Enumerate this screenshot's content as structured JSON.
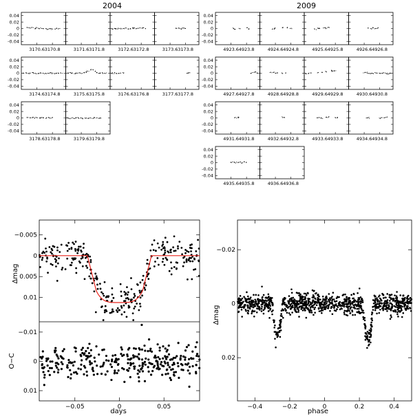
{
  "chart_data": [
    {
      "type": "scatter",
      "title": "2004",
      "panel_group": "small-multiples",
      "ylim": [
        0.05,
        -0.05
      ],
      "yticks": [
        "-0.04",
        "-0.02",
        "0",
        "0.02",
        "0.04"
      ],
      "panels": [
        {
          "xticks": [
            "3170.6",
            "3170.8"
          ],
          "points": [
            [
              0.15,
              0.002
            ],
            [
              0.2,
              0.001
            ],
            [
              0.25,
              0.003
            ],
            [
              0.3,
              -0.001
            ],
            [
              0.35,
              0.002
            ],
            [
              0.4,
              0.0
            ],
            [
              0.45,
              0.001
            ],
            [
              0.5,
              -0.001
            ],
            [
              0.55,
              0.0
            ],
            [
              0.6,
              -0.002
            ],
            [
              0.65,
              0.0
            ],
            [
              0.7,
              -0.001
            ],
            [
              0.75,
              -0.002
            ],
            [
              0.8,
              0.0
            ],
            [
              0.85,
              -0.001
            ]
          ]
        },
        {
          "xticks": [
            "3171.6",
            "3171.8"
          ],
          "points": []
        },
        {
          "xticks": [
            "3172.6",
            "3172.8"
          ],
          "points": [
            [
              0.05,
              -0.002
            ],
            [
              0.1,
              0.0
            ],
            [
              0.15,
              -0.001
            ],
            [
              0.2,
              0.001
            ],
            [
              0.25,
              -0.001
            ],
            [
              0.3,
              0.0
            ],
            [
              0.35,
              0.001
            ],
            [
              0.4,
              -0.001
            ],
            [
              0.45,
              0.0
            ],
            [
              0.5,
              0.001
            ],
            [
              0.55,
              0.002
            ],
            [
              0.6,
              0.0
            ],
            [
              0.65,
              0.001
            ],
            [
              0.7,
              0.002
            ],
            [
              0.75,
              0.001
            ],
            [
              0.8,
              0.0
            ]
          ]
        },
        {
          "xticks": [
            "3173.6",
            "3173.8"
          ],
          "points": [
            [
              0.5,
              0.0
            ],
            [
              0.55,
              0.001
            ],
            [
              0.6,
              -0.001
            ],
            [
              0.65,
              0.002
            ],
            [
              0.7,
              0.0
            ]
          ]
        },
        {
          "xticks": [
            "3174.6",
            "3174.8"
          ],
          "points": [
            [
              0.05,
              0.0
            ],
            [
              0.1,
              0.001
            ],
            [
              0.15,
              -0.001
            ],
            [
              0.2,
              0.0
            ],
            [
              0.25,
              0.001
            ],
            [
              0.3,
              0.0
            ],
            [
              0.35,
              -0.001
            ],
            [
              0.4,
              0.0
            ],
            [
              0.45,
              0.001
            ],
            [
              0.5,
              0.0
            ],
            [
              0.55,
              -0.001
            ],
            [
              0.6,
              0.0
            ],
            [
              0.65,
              0.001
            ],
            [
              0.7,
              0.0
            ],
            [
              0.75,
              -0.001
            ],
            [
              0.8,
              0.0
            ],
            [
              0.85,
              0.001
            ],
            [
              0.9,
              0.0
            ]
          ]
        },
        {
          "xticks": [
            "3175.6",
            "3175.8"
          ],
          "points": [
            [
              0.05,
              0.0
            ],
            [
              0.1,
              0.001
            ],
            [
              0.15,
              0.0
            ],
            [
              0.2,
              -0.001
            ],
            [
              0.25,
              0.0
            ],
            [
              0.3,
              0.001
            ],
            [
              0.35,
              0.0
            ],
            [
              0.4,
              0.001
            ],
            [
              0.45,
              0.003
            ],
            [
              0.5,
              0.006
            ],
            [
              0.55,
              0.011
            ],
            [
              0.6,
              0.011
            ],
            [
              0.65,
              0.006
            ],
            [
              0.7,
              0.002
            ],
            [
              0.75,
              0.0
            ],
            [
              0.8,
              0.001
            ],
            [
              0.85,
              0.0
            ],
            [
              0.9,
              0.0
            ]
          ]
        },
        {
          "xticks": [
            "3176.6",
            "3176.8"
          ],
          "points": [
            [
              0.05,
              0.0
            ],
            [
              0.1,
              0.001
            ],
            [
              0.15,
              0.0
            ],
            [
              0.2,
              -0.001
            ],
            [
              0.25,
              0.0
            ],
            [
              0.3,
              0.001
            ]
          ]
        },
        {
          "xticks": [
            "3177.6",
            "3177.8"
          ],
          "points": [
            [
              0.75,
              0.0
            ],
            [
              0.78,
              0.001
            ]
          ]
        },
        {
          "xticks": [
            "3178.6",
            "3178.8"
          ],
          "points": [
            [
              0.15,
              0.001
            ],
            [
              0.2,
              0.0
            ],
            [
              0.25,
              0.002
            ],
            [
              0.3,
              -0.001
            ],
            [
              0.35,
              0.001
            ],
            [
              0.4,
              0.0
            ],
            [
              0.45,
              0.002
            ],
            [
              0.5,
              0.001
            ],
            [
              0.55,
              0.0
            ],
            [
              0.6,
              0.001
            ],
            [
              0.65,
              -0.001
            ],
            [
              0.7,
              0.0
            ]
          ]
        },
        {
          "xticks": [
            "3179.6",
            "3179.8"
          ],
          "points": [
            [
              0.05,
              0.0
            ],
            [
              0.1,
              -0.002
            ],
            [
              0.15,
              0.0
            ],
            [
              0.2,
              -0.001
            ],
            [
              0.25,
              0.001
            ],
            [
              0.3,
              -0.001
            ],
            [
              0.35,
              0.0
            ],
            [
              0.4,
              -0.002
            ],
            [
              0.45,
              0.0
            ],
            [
              0.5,
              -0.001
            ],
            [
              0.55,
              0.0
            ],
            [
              0.6,
              -0.001
            ],
            [
              0.65,
              0.001
            ],
            [
              0.7,
              0.0
            ],
            [
              0.75,
              -0.001
            ],
            [
              0.8,
              0.0
            ]
          ]
        }
      ]
    },
    {
      "type": "scatter",
      "title": "2009",
      "panel_group": "small-multiples",
      "ylim": [
        0.05,
        -0.05
      ],
      "yticks": [
        "-0.04",
        "-0.02",
        "0",
        "0.02",
        "0.04"
      ],
      "panels": [
        {
          "xticks": [
            "4923.6",
            "4923.8"
          ],
          "points": [
            [
              0.4,
              0.0
            ],
            [
              0.45,
              -0.002
            ],
            [
              0.55,
              0.001
            ],
            [
              0.7,
              0.003
            ],
            [
              0.75,
              -0.001
            ]
          ]
        },
        {
          "xticks": [
            "4924.6",
            "4924.8"
          ],
          "points": [
            [
              0.3,
              -0.002
            ],
            [
              0.35,
              0.001
            ],
            [
              0.5,
              0.003
            ],
            [
              0.6,
              0.002
            ],
            [
              0.7,
              0.0
            ]
          ]
        },
        {
          "xticks": [
            "4925.6",
            "4925.8"
          ],
          "points": [
            [
              0.25,
              -0.002
            ],
            [
              0.3,
              0.0
            ],
            [
              0.35,
              0.001
            ],
            [
              0.45,
              0.002
            ],
            [
              0.5,
              0.001
            ],
            [
              0.55,
              0.003
            ]
          ]
        },
        {
          "xticks": [
            "4926.6",
            "4926.8"
          ],
          "points": [
            [
              0.45,
              0.001
            ],
            [
              0.5,
              -0.001
            ],
            [
              0.55,
              0.002
            ],
            [
              0.6,
              0.0
            ],
            [
              0.65,
              0.002
            ]
          ]
        },
        {
          "xticks": [
            "4927.6",
            "4927.8"
          ],
          "points": [
            [
              0.8,
              0.0
            ],
            [
              0.85,
              0.002
            ],
            [
              0.9,
              0.004
            ],
            [
              0.95,
              0.001
            ]
          ]
        },
        {
          "xticks": [
            "4928.6",
            "4928.8"
          ],
          "points": [
            [
              0.25,
              0.002
            ],
            [
              0.3,
              0.003
            ],
            [
              0.35,
              0.0
            ],
            [
              0.4,
              0.001
            ],
            [
              0.5,
              -0.001
            ],
            [
              0.6,
              0.001
            ]
          ]
        },
        {
          "xticks": [
            "4929.6",
            "4929.8"
          ],
          "points": [
            [
              0.05,
              -0.002
            ],
            [
              0.1,
              -0.001
            ],
            [
              0.15,
              0.001
            ],
            [
              0.3,
              0.002
            ],
            [
              0.4,
              0.003
            ],
            [
              0.5,
              0.005
            ],
            [
              0.6,
              0.008
            ],
            [
              0.65,
              0.006
            ],
            [
              0.7,
              0.007
            ]
          ]
        },
        {
          "xticks": [
            "4930.6",
            "4930.8"
          ],
          "points": [
            [
              0.35,
              0.002
            ],
            [
              0.4,
              0.001
            ],
            [
              0.45,
              0.0
            ],
            [
              0.5,
              -0.001
            ],
            [
              0.55,
              0.0
            ],
            [
              0.6,
              0.001
            ],
            [
              0.65,
              0.0
            ],
            [
              0.7,
              -0.001
            ],
            [
              0.75,
              0.0
            ],
            [
              0.8,
              0.001
            ],
            [
              0.85,
              0.0
            ],
            [
              0.9,
              -0.002
            ],
            [
              0.95,
              0.0
            ]
          ]
        },
        {
          "xticks": [
            "4931.6",
            "4931.8"
          ],
          "points": [
            [
              0.45,
              0.001
            ],
            [
              0.5,
              0.0
            ],
            [
              0.52,
              0.002
            ]
          ]
        },
        {
          "xticks": [
            "4932.6",
            "4932.8"
          ],
          "points": [
            [
              0.5,
              0.002
            ],
            [
              0.55,
              0.001
            ]
          ]
        },
        {
          "xticks": [
            "4933.6",
            "4933.8"
          ],
          "points": [
            [
              0.3,
              0.0
            ],
            [
              0.35,
              0.001
            ],
            [
              0.4,
              -0.001
            ],
            [
              0.5,
              0.001
            ],
            [
              0.55,
              0.002
            ],
            [
              0.7,
              0.0
            ],
            [
              0.75,
              0.001
            ]
          ]
        },
        {
          "xticks": [
            "4934.6",
            "4934.8"
          ],
          "points": [
            [
              0.4,
              0.0
            ],
            [
              0.45,
              0.001
            ],
            [
              0.7,
              -0.001
            ],
            [
              0.75,
              0.0
            ],
            [
              0.8,
              0.001
            ],
            [
              0.85,
              0.003
            ]
          ]
        },
        {
          "xticks": [
            "4935.6",
            "4935.8"
          ],
          "points": [
            [
              0.35,
              0.0
            ],
            [
              0.4,
              0.001
            ],
            [
              0.45,
              -0.001
            ],
            [
              0.5,
              0.0
            ],
            [
              0.55,
              0.001
            ],
            [
              0.6,
              0.0
            ],
            [
              0.65,
              0.002
            ],
            [
              0.7,
              0.001
            ]
          ]
        },
        {
          "xticks": [
            "4936.6",
            "4936.8"
          ],
          "points": []
        }
      ]
    },
    {
      "type": "scatter",
      "title": "",
      "xlabel": "days",
      "ylabel": "Δmag",
      "ylabel_residual": "O−C",
      "xlim": [
        -0.09,
        0.09
      ],
      "ylim": [
        0.0158,
        -0.0085
      ],
      "ylim_residual": [
        0.0135,
        -0.0135
      ],
      "xticks": [
        "−0.05",
        "0",
        "0.05"
      ],
      "yticks": [
        "−0.005",
        "0",
        "0.005",
        "0.01"
      ],
      "yticks_residual": [
        "−0.01",
        "0",
        "0.01"
      ],
      "model_color": "#e8231b",
      "model": {
        "depth": 0.0112,
        "t_ingress_start": -0.036,
        "t_ingress_end": -0.026,
        "t_egress_start": 0.026,
        "t_egress_end": 0.036
      }
    },
    {
      "type": "scatter",
      "title": "",
      "xlabel": "phase",
      "ylabel": "Δmag",
      "xlim": [
        -0.5,
        0.5
      ],
      "ylim": [
        0.036,
        -0.031
      ],
      "xticks": [
        "−0.4",
        "−0.2",
        "0",
        "0.2",
        "0.4"
      ],
      "yticks": [
        "−0.02",
        "0",
        "0.02"
      ],
      "eclipses": [
        {
          "phase": -0.27,
          "depth": 0.012
        },
        {
          "phase": 0.25,
          "depth": 0.014
        }
      ]
    }
  ]
}
